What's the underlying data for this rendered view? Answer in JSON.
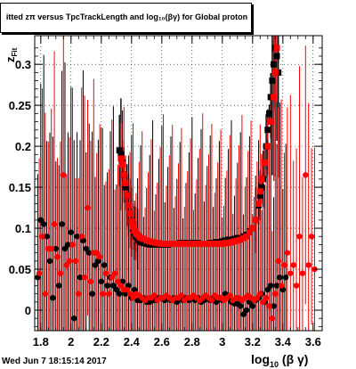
{
  "title": "itted  z_{π} versus TpcTrackLength and log_{10}(βγ) for Global proton",
  "title_display": "itted  zπ  versus  TpcTrackLength and log₁₀(βγ) for Global proton",
  "footer": "Wed Jun  7 18:15:14 2017",
  "colors": {
    "series_a": "#000000",
    "series_b": "#ff0000",
    "frame": "#000000"
  },
  "chart_data": {
    "type": "scatter",
    "xlabel": "log10 (β γ)",
    "xlabel_main": "log",
    "xlabel_sub": "10",
    "xlabel_tail": " (β γ)",
    "ylabel": "z Fit",
    "ylabel_main": "z",
    "ylabel_sub": "Fit",
    "xlim": [
      1.76,
      3.66
    ],
    "ylim": [
      -0.025,
      0.335
    ],
    "xticks": [
      "1.8",
      "2",
      "2.2",
      "2.4",
      "2.6",
      "2.8",
      "3",
      "3.2",
      "3.4",
      "3.6"
    ],
    "yticks": [
      "0",
      "0.05",
      "0.1",
      "0.15",
      "0.2",
      "0.25",
      "0.3"
    ],
    "grid": true,
    "series": [
      {
        "color": "#000000",
        "marker": "square",
        "x": [
          2.32,
          2.33,
          2.34,
          2.35,
          2.36,
          2.37,
          2.38,
          2.39,
          2.4,
          2.41,
          2.42,
          2.43,
          2.44,
          2.45,
          2.46,
          2.48,
          2.5,
          2.52,
          2.54,
          2.56,
          2.58,
          2.6,
          2.62,
          2.64,
          2.66,
          2.68,
          2.7,
          2.72,
          2.74,
          2.76,
          2.78,
          2.8,
          2.82,
          2.84,
          2.86,
          2.88,
          2.9,
          2.92,
          2.94,
          2.96,
          2.98,
          3.0,
          3.02,
          3.04,
          3.06,
          3.08,
          3.1,
          3.12,
          3.14,
          3.16,
          3.18,
          3.2,
          3.22,
          3.24,
          3.25,
          3.26,
          3.27,
          3.28,
          3.29,
          3.3,
          3.31,
          3.32,
          3.33,
          3.34,
          3.35,
          3.36,
          3.37
        ],
        "y": [
          0.195,
          0.19,
          0.18,
          0.165,
          0.15,
          0.14,
          0.128,
          0.118,
          0.108,
          0.1,
          0.094,
          0.09,
          0.087,
          0.085,
          0.083,
          0.082,
          0.081,
          0.08,
          0.08,
          0.08,
          0.08,
          0.08,
          0.08,
          0.08,
          0.081,
          0.081,
          0.081,
          0.082,
          0.082,
          0.082,
          0.082,
          0.082,
          0.082,
          0.082,
          0.081,
          0.081,
          0.081,
          0.082,
          0.082,
          0.083,
          0.083,
          0.084,
          0.085,
          0.086,
          0.086,
          0.087,
          0.088,
          0.088,
          0.09,
          0.092,
          0.096,
          0.1,
          0.11,
          0.128,
          0.14,
          0.15,
          0.16,
          0.18,
          0.2,
          0.22,
          0.24,
          0.26,
          0.28,
          0.3,
          0.32,
          0.31,
          0.29
        ]
      },
      {
        "color": "#ff0000",
        "marker": "square",
        "x": [
          2.33,
          2.34,
          2.35,
          2.36,
          2.37,
          2.38,
          2.39,
          2.4,
          2.41,
          2.42,
          2.43,
          2.44,
          2.45,
          2.46,
          2.48,
          2.5,
          2.52,
          2.54,
          2.56,
          2.58,
          2.6,
          2.62,
          2.64,
          2.66,
          2.68,
          2.7,
          2.72,
          2.74,
          2.76,
          2.78,
          2.8,
          2.82,
          2.84,
          2.86,
          2.88,
          2.9,
          2.92,
          2.94,
          2.96,
          2.98,
          3.0,
          3.02,
          3.04,
          3.06,
          3.08,
          3.1,
          3.12,
          3.14,
          3.16,
          3.18,
          3.2,
          3.22,
          3.24,
          3.25,
          3.26,
          3.28,
          3.3,
          3.32,
          3.34,
          3.35,
          3.36
        ],
        "y": [
          0.185,
          0.178,
          0.165,
          0.155,
          0.14,
          0.128,
          0.118,
          0.108,
          0.102,
          0.097,
          0.094,
          0.092,
          0.09,
          0.088,
          0.087,
          0.085,
          0.084,
          0.083,
          0.082,
          0.082,
          0.081,
          0.081,
          0.081,
          0.081,
          0.081,
          0.081,
          0.081,
          0.081,
          0.081,
          0.081,
          0.081,
          0.081,
          0.081,
          0.081,
          0.081,
          0.081,
          0.081,
          0.081,
          0.081,
          0.081,
          0.081,
          0.082,
          0.082,
          0.083,
          0.084,
          0.085,
          0.086,
          0.088,
          0.09,
          0.095,
          0.1,
          0.11,
          0.13,
          0.145,
          0.16,
          0.18,
          0.2,
          0.23,
          0.26,
          0.29,
          0.32
        ]
      },
      {
        "color": "#000000",
        "marker": "circle",
        "x": [
          1.78,
          1.8,
          1.82,
          1.84,
          1.86,
          1.88,
          1.9,
          1.92,
          1.94,
          1.96,
          1.98,
          2.0,
          2.02,
          2.04,
          2.06,
          2.08,
          2.1,
          2.12,
          2.14,
          2.16,
          2.18,
          2.2,
          2.22,
          2.24,
          2.26,
          2.28,
          2.3,
          2.32,
          2.34,
          2.36,
          2.38,
          2.4,
          2.42,
          2.44,
          2.46,
          2.48,
          2.5,
          2.52,
          2.54,
          2.56,
          2.58,
          2.6,
          2.62,
          2.64,
          2.66,
          2.68,
          2.7,
          2.72,
          2.74,
          2.76,
          2.78,
          2.8,
          2.82,
          2.84,
          2.86,
          2.88,
          2.9,
          2.92,
          2.94,
          2.96,
          2.98,
          3.0,
          3.02,
          3.04,
          3.06,
          3.08,
          3.1,
          3.12,
          3.14,
          3.16,
          3.18,
          3.2,
          3.22,
          3.24,
          3.26,
          3.28,
          3.3,
          3.32,
          3.34,
          3.36,
          3.38,
          3.4,
          3.42
        ],
        "y": [
          0.04,
          0.11,
          0.105,
          0.09,
          0.06,
          0.015,
          0.075,
          0.03,
          0.105,
          0.075,
          0.08,
          0.095,
          -0.01,
          0.09,
          0.04,
          0.085,
          0.075,
          0.07,
          0.02,
          0.055,
          0.06,
          0.035,
          0.055,
          0.03,
          0.04,
          0.03,
          0.025,
          0.02,
          0.035,
          0.02,
          0.03,
          0.015,
          0.025,
          0.012,
          0.012,
          0.015,
          0.01,
          0.01,
          0.012,
          0.012,
          0.015,
          0.015,
          0.012,
          0.015,
          0.012,
          0.015,
          0.01,
          0.015,
          0.012,
          0.015,
          0.012,
          0.015,
          0.012,
          0.015,
          0.01,
          0.012,
          0.015,
          0.012,
          0.015,
          0.01,
          0.015,
          0.012,
          0.02,
          0.015,
          0.01,
          0.008,
          0.008,
          0.005,
          -0.005,
          0.0,
          0.01,
          0.005,
          0.012,
          0.015,
          0.02,
          0.01,
          0.025,
          0.03,
          0.005,
          0.03,
          0.04,
          0.025,
          0.04
        ]
      },
      {
        "color": "#ff0000",
        "marker": "circle",
        "x": [
          1.79,
          1.81,
          1.83,
          1.85,
          1.87,
          1.89,
          1.91,
          1.93,
          1.95,
          1.97,
          1.99,
          2.01,
          2.03,
          2.05,
          2.07,
          2.09,
          2.11,
          2.13,
          2.15,
          2.17,
          2.19,
          2.21,
          2.23,
          2.25,
          2.27,
          2.29,
          2.31,
          2.33,
          2.35,
          2.37,
          2.39,
          2.41,
          2.43,
          2.45,
          2.47,
          2.49,
          2.51,
          2.53,
          2.55,
          2.57,
          2.59,
          2.61,
          2.63,
          2.65,
          2.67,
          2.69,
          2.71,
          2.73,
          2.75,
          2.77,
          2.79,
          2.81,
          2.83,
          2.85,
          2.87,
          2.89,
          2.91,
          2.93,
          2.95,
          2.97,
          2.99,
          3.01,
          3.03,
          3.05,
          3.07,
          3.09,
          3.11,
          3.13,
          3.15,
          3.17,
          3.19,
          3.21,
          3.23,
          3.25,
          3.27,
          3.29,
          3.31,
          3.33,
          3.35,
          3.37,
          3.39,
          3.41,
          3.43,
          3.45,
          3.47,
          3.49,
          3.51,
          3.53,
          3.55,
          3.57,
          3.59,
          3.61
        ],
        "y": [
          0.045,
          0.09,
          0.02,
          0.075,
          0.075,
          0.105,
          0.065,
          0.045,
          0.165,
          0.055,
          0.06,
          0.08,
          0.06,
          0.02,
          0.09,
          0.04,
          0.125,
          0.035,
          0.07,
          0.07,
          0.065,
          0.02,
          0.045,
          0.02,
          0.04,
          0.045,
          0.035,
          0.03,
          0.025,
          0.025,
          0.02,
          0.015,
          0.02,
          0.018,
          0.015,
          0.012,
          0.015,
          0.015,
          0.018,
          0.012,
          0.015,
          0.015,
          0.018,
          0.015,
          0.012,
          0.015,
          0.015,
          0.018,
          0.012,
          0.015,
          0.015,
          0.018,
          0.015,
          0.012,
          0.015,
          0.018,
          0.015,
          0.012,
          0.018,
          0.015,
          0.015,
          0.012,
          0.015,
          0.018,
          0.012,
          0.015,
          0.015,
          0.012,
          0.015,
          0.018,
          0.015,
          0.012,
          0.015,
          0.02,
          0.01,
          0.015,
          0.005,
          -0.01,
          0.02,
          0.06,
          0.03,
          0.055,
          0.07,
          0.045,
          0.055,
          0.03,
          0.09,
          0.045,
          0.165,
          0.055,
          0.09,
          0.05
        ]
      }
    ]
  }
}
